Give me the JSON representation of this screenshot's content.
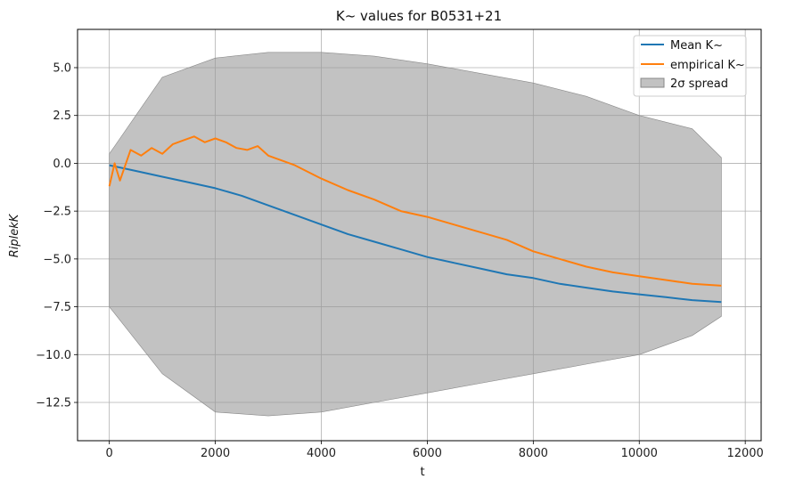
{
  "chart_data": {
    "type": "line",
    "title": "K~ values for B0531+21",
    "xlabel": "t",
    "ylabel": "RiplekK",
    "xlim": [
      -600,
      12300
    ],
    "ylim": [
      -14.5,
      7.0
    ],
    "xticks": [
      0,
      2000,
      4000,
      6000,
      8000,
      10000,
      12000
    ],
    "xtick_labels": [
      "0",
      "2000",
      "4000",
      "6000",
      "8000",
      "10000",
      "12000"
    ],
    "yticks": [
      5.0,
      2.5,
      0.0,
      -2.5,
      -5.0,
      -7.5,
      -10.0,
      -12.5
    ],
    "ytick_labels": [
      "5.0",
      "2.5",
      "0.0",
      "−2.5",
      "−5.0",
      "−7.5",
      "−10.0",
      "−12.5"
    ],
    "grid": true,
    "legend_position": "upper right",
    "series": [
      {
        "name": "Mean K~",
        "color": "#1f77b4",
        "x": [
          0,
          500,
          1000,
          1500,
          2000,
          2500,
          3000,
          3500,
          4000,
          4500,
          5000,
          5500,
          6000,
          6500,
          7000,
          7500,
          8000,
          8500,
          9000,
          9500,
          10000,
          10500,
          11000,
          11550
        ],
        "y": [
          -0.1,
          -0.4,
          -0.7,
          -1.0,
          -1.3,
          -1.7,
          -2.2,
          -2.7,
          -3.2,
          -3.7,
          -4.1,
          -4.5,
          -4.9,
          -5.2,
          -5.5,
          -5.8,
          -6.0,
          -6.3,
          -6.5,
          -6.7,
          -6.85,
          -7.0,
          -7.15,
          -7.25
        ]
      },
      {
        "name": "empirical K~",
        "color": "#ff7f0e",
        "x": [
          0,
          100,
          200,
          400,
          600,
          800,
          1000,
          1200,
          1400,
          1600,
          1800,
          2000,
          2200,
          2400,
          2600,
          2800,
          3000,
          3500,
          4000,
          4500,
          5000,
          5500,
          6000,
          6500,
          7000,
          7500,
          8000,
          8500,
          9000,
          9500,
          10000,
          10500,
          11000,
          11550
        ],
        "y": [
          -1.2,
          0.0,
          -0.9,
          0.7,
          0.4,
          0.8,
          0.5,
          1.0,
          1.2,
          1.4,
          1.1,
          1.3,
          1.1,
          0.8,
          0.7,
          0.9,
          0.4,
          -0.1,
          -0.8,
          -1.4,
          -1.9,
          -2.5,
          -2.8,
          -3.2,
          -3.6,
          -4.0,
          -4.6,
          -5.0,
          -5.4,
          -5.7,
          -5.9,
          -6.1,
          -6.3,
          -6.4
        ]
      }
    ],
    "band": {
      "name": "2σ spread",
      "color": "#999999",
      "x": [
        0,
        1000,
        2000,
        3000,
        4000,
        5000,
        6000,
        7000,
        8000,
        9000,
        10000,
        11000,
        11550
      ],
      "lower": [
        -7.5,
        -11.0,
        -13.0,
        -13.2,
        -13.0,
        -12.5,
        -12.0,
        -11.5,
        -11.0,
        -10.5,
        -10.0,
        -9.0,
        -8.0
      ],
      "upper": [
        0.5,
        4.5,
        5.5,
        5.8,
        5.8,
        5.6,
        5.2,
        4.7,
        4.2,
        3.5,
        2.5,
        1.8,
        0.3
      ]
    }
  }
}
